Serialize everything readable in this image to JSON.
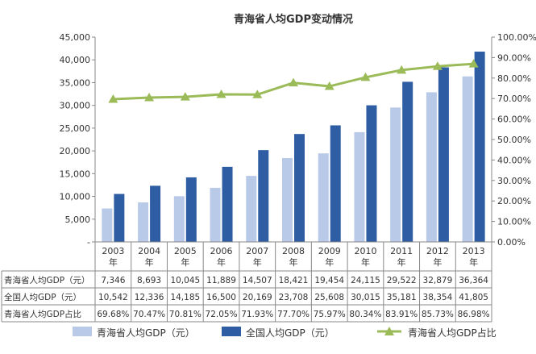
{
  "chart_data": {
    "type": "bar",
    "title": "青海省人均GDP变动情况",
    "categories": [
      "2003\n年",
      "2004\n年",
      "2005\n年",
      "2006\n年",
      "2007\n年",
      "2008\n年",
      "2009\n年",
      "2010\n年",
      "2011\n年",
      "2012\n年",
      "2013\n年"
    ],
    "y_left": {
      "range": [
        0,
        45000
      ],
      "ticks": [
        "-",
        "5,000",
        "10,000",
        "15,000",
        "20,000",
        "25,000",
        "30,000",
        "35,000",
        "40,000",
        "45,000"
      ]
    },
    "y_right": {
      "range": [
        0,
        100
      ],
      "ticks": [
        "0.00%",
        "10.00%",
        "20.00%",
        "30.00%",
        "40.00%",
        "50.00%",
        "60.00%",
        "70.00%",
        "80.00%",
        "90.00%",
        "100.00%"
      ]
    },
    "series": [
      {
        "name": "青海省人均GDP（元）",
        "type": "bar",
        "color": "#b9c9e8",
        "values": [
          7346,
          8693,
          10045,
          11889,
          14507,
          18421,
          19454,
          24115,
          29522,
          32879,
          36364
        ],
        "labels": [
          "7,346",
          "8,693",
          "10,045",
          "11,889",
          "14,507",
          "18,421",
          "19,454",
          "24,115",
          "29,522",
          "32,879",
          "36,364"
        ]
      },
      {
        "name": "全国人均GDP（元）",
        "type": "bar",
        "color": "#2e5da3",
        "values": [
          10542,
          12336,
          14185,
          16500,
          20169,
          23708,
          25608,
          30015,
          35181,
          38354,
          41805
        ],
        "labels": [
          "10,542",
          "12,336",
          "14,185",
          "16,500",
          "20,169",
          "23,708",
          "25,608",
          "30,015",
          "35,181",
          "38,354",
          "41,805"
        ]
      },
      {
        "name": "青海省人均GDP占比",
        "type": "line",
        "axis": "right",
        "color": "#9bbb59",
        "values": [
          69.68,
          70.47,
          70.81,
          72.05,
          71.93,
          77.7,
          75.97,
          80.34,
          83.91,
          85.73,
          86.98
        ],
        "labels": [
          "69.68%",
          "70.47%",
          "70.81%",
          "72.05%",
          "71.93%",
          "77.70%",
          "75.97%",
          "80.34%",
          "83.91%",
          "85.73%",
          "86.98%"
        ]
      }
    ],
    "table_row_labels": [
      "青海省人均GDP（元）",
      "全国人均GDP（元）",
      "青海省人均GDP占比"
    ],
    "legend": {
      "position": "bottom",
      "items": [
        "青海省人均GDP（元）",
        "全国人均GDP（元）",
        "青海省人均GDP占比"
      ]
    },
    "grid": false
  }
}
